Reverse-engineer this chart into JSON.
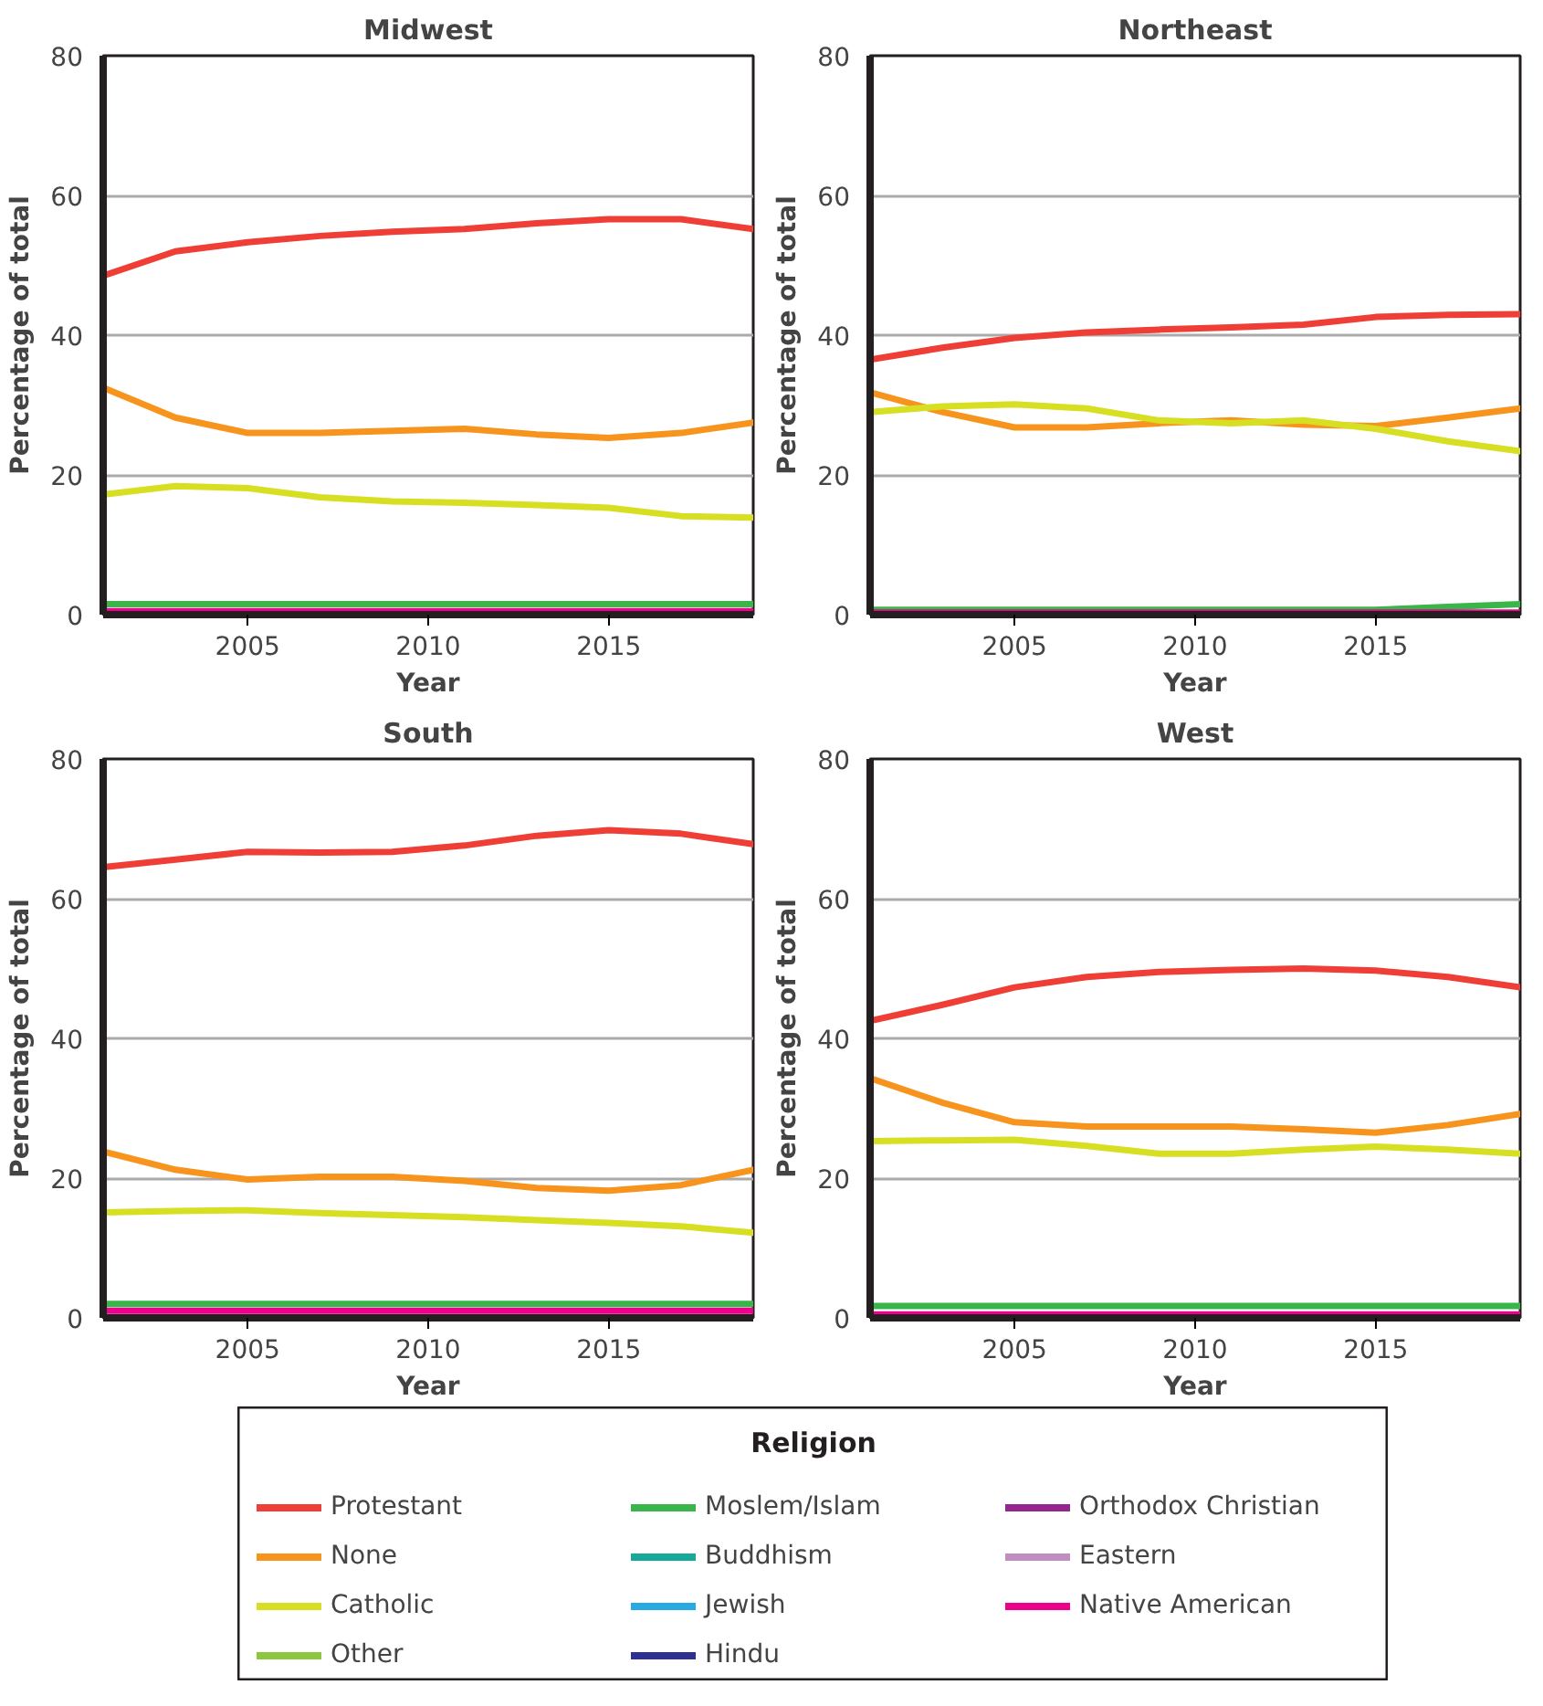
{
  "chart_data": [
    {
      "type": "line",
      "title": "Midwest",
      "xlabel": "Year",
      "ylabel": "Percentage of total",
      "x": [
        2001,
        2003,
        2005,
        2007,
        2009,
        2011,
        2013,
        2015,
        2017,
        2019
      ],
      "xlim": [
        2001,
        2019
      ],
      "ylim": [
        0,
        80
      ],
      "xticks": [
        2005,
        2010,
        2015
      ],
      "yticks": [
        0,
        20,
        40,
        60,
        80
      ],
      "grid": "y",
      "legend": "bottom",
      "legend_title": "Religion",
      "series": [
        {
          "name": "Protestant",
          "color": "#ef3e36",
          "values": [
            48.5,
            52,
            53.3,
            54.2,
            54.8,
            55.2,
            56,
            56.6,
            56.6,
            55.2
          ]
        },
        {
          "name": "None",
          "color": "#f7941d",
          "values": [
            32.5,
            28.2,
            26,
            26,
            26.3,
            26.6,
            25.8,
            25.3,
            26,
            27.5
          ]
        },
        {
          "name": "Catholic",
          "color": "#d7df23",
          "values": [
            17.2,
            18.4,
            18.1,
            16.8,
            16.2,
            16,
            15.7,
            15.3,
            14.1,
            13.9
          ]
        },
        {
          "name": "Other",
          "color": "#8dc63f",
          "values": [
            null,
            null,
            null,
            null,
            null,
            null,
            null,
            null,
            null,
            null
          ]
        },
        {
          "name": "Moslem/Islam",
          "color": "#39b54a",
          "values": [
            1.5,
            1.5,
            1.5,
            1.5,
            1.5,
            1.5,
            1.5,
            1.5,
            1.5,
            1.5
          ]
        },
        {
          "name": "Buddhism",
          "color": "#16a99a",
          "values": [
            null,
            null,
            null,
            null,
            null,
            null,
            null,
            null,
            null,
            null
          ]
        },
        {
          "name": "Jewish",
          "color": "#27aae1",
          "values": [
            null,
            null,
            null,
            null,
            null,
            null,
            null,
            null,
            null,
            null
          ]
        },
        {
          "name": "Hindu",
          "color": "#2e3192",
          "values": [
            null,
            null,
            null,
            null,
            null,
            null,
            null,
            null,
            null,
            null
          ]
        },
        {
          "name": "Orthodox Christian",
          "color": "#92278f",
          "values": [
            null,
            null,
            null,
            null,
            null,
            null,
            null,
            null,
            null,
            null
          ]
        },
        {
          "name": "Eastern",
          "color": "#c08ec0",
          "values": [
            null,
            null,
            null,
            null,
            null,
            null,
            null,
            null,
            null,
            null
          ]
        },
        {
          "name": "Native American",
          "color": "#ec008c",
          "values": [
            0.5,
            0.5,
            0.5,
            0.5,
            0.5,
            0.5,
            0.5,
            0.5,
            0.5,
            0.5
          ]
        }
      ]
    },
    {
      "type": "line",
      "title": "Northeast",
      "xlabel": "Year",
      "ylabel": "Percentage of total",
      "x": [
        2001,
        2003,
        2005,
        2007,
        2009,
        2011,
        2013,
        2015,
        2017,
        2019
      ],
      "xlim": [
        2001,
        2019
      ],
      "ylim": [
        0,
        80
      ],
      "xticks": [
        2005,
        2010,
        2015
      ],
      "yticks": [
        0,
        20,
        40,
        60,
        80
      ],
      "grid": "y",
      "series": [
        {
          "color": "#ef3e36",
          "values": [
            36.5,
            38.2,
            39.6,
            40.4,
            40.8,
            41.1,
            41.5,
            42.6,
            42.9,
            43
          ]
        },
        {
          "color": "#f7941d",
          "values": [
            31.8,
            29,
            26.8,
            26.8,
            27.4,
            27.8,
            27.2,
            27,
            28.2,
            29.5
          ]
        },
        {
          "color": "#d7df23",
          "values": [
            29,
            29.8,
            30.1,
            29.5,
            27.8,
            27.4,
            27.8,
            26.6,
            24.8,
            23.4
          ]
        },
        {
          "color": "#39b54a",
          "values": [
            0.7,
            0.7,
            0.7,
            0.7,
            0.7,
            0.7,
            0.7,
            0.7,
            1.1,
            1.5
          ]
        },
        {
          "color": "#ec008c",
          "values": [
            0.3,
            0.3,
            0.3,
            0.3,
            0.3,
            0.3,
            0.3,
            0.3,
            0.3,
            0.3
          ]
        }
      ]
    },
    {
      "type": "line",
      "title": "South",
      "xlabel": "Year",
      "ylabel": "Percentage of total",
      "x": [
        2001,
        2003,
        2005,
        2007,
        2009,
        2011,
        2013,
        2015,
        2017,
        2019
      ],
      "xlim": [
        2001,
        2019
      ],
      "ylim": [
        0,
        80
      ],
      "xticks": [
        2005,
        2010,
        2015
      ],
      "yticks": [
        0,
        20,
        40,
        60,
        80
      ],
      "grid": "y",
      "series": [
        {
          "color": "#ef3e36",
          "values": [
            64.5,
            65.6,
            66.7,
            66.6,
            66.7,
            67.6,
            69,
            69.8,
            69.3,
            67.8
          ]
        },
        {
          "color": "#f7941d",
          "values": [
            23.8,
            21.2,
            19.8,
            20.2,
            20.2,
            19.6,
            18.6,
            18.2,
            19,
            21.2
          ]
        },
        {
          "color": "#d7df23",
          "values": [
            15.1,
            15.3,
            15.4,
            15,
            14.7,
            14.4,
            14,
            13.6,
            13.1,
            12.2
          ]
        },
        {
          "color": "#39b54a",
          "values": [
            2,
            2,
            2,
            2,
            2,
            2,
            2,
            2,
            2,
            2
          ]
        },
        {
          "color": "#ec008c",
          "values": [
            1,
            1,
            1,
            1,
            1,
            1,
            1,
            1,
            1,
            1
          ]
        }
      ]
    },
    {
      "type": "line",
      "title": "West",
      "xlabel": "Year",
      "ylabel": "Percentage of total",
      "x": [
        2001,
        2003,
        2005,
        2007,
        2009,
        2011,
        2013,
        2015,
        2017,
        2019
      ],
      "xlim": [
        2001,
        2019
      ],
      "ylim": [
        0,
        80
      ],
      "xticks": [
        2005,
        2010,
        2015
      ],
      "yticks": [
        0,
        20,
        40,
        60,
        80
      ],
      "grid": "y",
      "series": [
        {
          "color": "#ef3e36",
          "values": [
            42.5,
            44.8,
            47.3,
            48.8,
            49.5,
            49.8,
            50,
            49.7,
            48.8,
            47.3
          ]
        },
        {
          "color": "#f7941d",
          "values": [
            34.3,
            30.8,
            28,
            27.4,
            27.4,
            27.4,
            27,
            26.5,
            27.6,
            29.2
          ]
        },
        {
          "color": "#d7df23",
          "values": [
            25.3,
            25.4,
            25.5,
            24.6,
            23.5,
            23.5,
            24.1,
            24.5,
            24.1,
            23.5
          ]
        },
        {
          "color": "#39b54a",
          "values": [
            1.7,
            1.7,
            1.7,
            1.7,
            1.7,
            1.7,
            1.7,
            1.7,
            1.7,
            1.7
          ]
        },
        {
          "color": "#ec008c",
          "values": [
            0.5,
            0.5,
            0.5,
            0.5,
            0.5,
            0.5,
            0.5,
            0.5,
            0.5,
            0.5
          ]
        }
      ]
    }
  ]
}
